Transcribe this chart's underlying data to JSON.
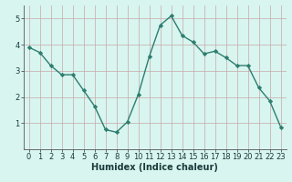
{
  "x": [
    0,
    1,
    2,
    3,
    4,
    5,
    6,
    7,
    8,
    9,
    10,
    11,
    12,
    13,
    14,
    15,
    16,
    17,
    18,
    19,
    20,
    21,
    22,
    23
  ],
  "y": [
    3.9,
    3.7,
    3.2,
    2.85,
    2.85,
    2.25,
    1.65,
    0.75,
    0.65,
    1.05,
    2.1,
    3.55,
    4.75,
    5.1,
    4.35,
    4.1,
    3.65,
    3.75,
    3.5,
    3.2,
    3.2,
    2.35,
    1.85,
    0.85
  ],
  "line_color": "#2e7d6e",
  "marker": "D",
  "marker_size": 2.2,
  "bg_color": "#d8f5f0",
  "grid_color": "#c8a8a8",
  "xlabel": "Humidex (Indice chaleur)",
  "xlim": [
    -0.5,
    23.5
  ],
  "ylim": [
    0,
    5.5
  ],
  "yticks": [
    1,
    2,
    3,
    4,
    5
  ],
  "xticks": [
    0,
    1,
    2,
    3,
    4,
    5,
    6,
    7,
    8,
    9,
    10,
    11,
    12,
    13,
    14,
    15,
    16,
    17,
    18,
    19,
    20,
    21,
    22,
    23
  ],
  "xlabel_fontsize": 7,
  "tick_fontsize": 6,
  "line_width": 1.0
}
